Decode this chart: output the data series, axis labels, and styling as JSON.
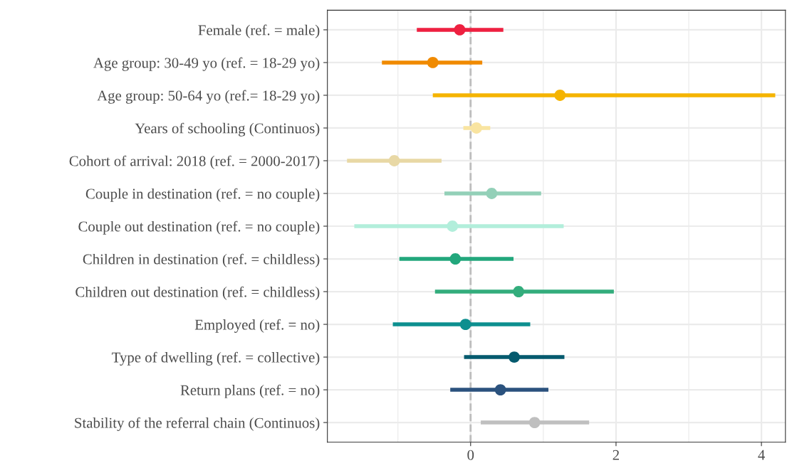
{
  "chart_data": {
    "type": "scatter",
    "orientation": "horizontal",
    "categories": [
      "Female (ref. = male)",
      "Age group: 30-49 yo (ref. = 18-29 yo)",
      "Age group: 50-64 yo (ref.= 18-29 yo)",
      "Years of schooling (Continuos)",
      "Cohort of arrival: 2018 (ref. = 2000-2017)",
      "Couple in destination (ref. = no couple)",
      "Couple out destination (ref. = no couple)",
      "Children in destination (ref. = childless)",
      "Children out destination (ref. = childless)",
      "Employed (ref. = no)",
      "Type of dwelling (ref. = collective)",
      "Return plans (ref. = no)",
      "Stability of the referral chain (Continuos)"
    ],
    "values": [
      -0.15,
      -0.52,
      1.23,
      0.08,
      -1.05,
      0.29,
      -0.25,
      -0.21,
      0.66,
      -0.07,
      0.6,
      0.41,
      0.88
    ],
    "errors": [
      [
        -0.74,
        0.45
      ],
      [
        -1.22,
        0.16
      ],
      [
        -0.52,
        4.19
      ],
      [
        -0.1,
        0.27
      ],
      [
        -1.7,
        -0.4
      ],
      [
        -0.36,
        0.97
      ],
      [
        -1.6,
        1.28
      ],
      [
        -0.98,
        0.59
      ],
      [
        -0.49,
        1.97
      ],
      [
        -1.07,
        0.82
      ],
      [
        -0.09,
        1.29
      ],
      [
        -0.28,
        1.07
      ],
      [
        0.14,
        1.63
      ]
    ],
    "colors": [
      "#ee2040",
      "#f08a00",
      "#f5b400",
      "#f9e4a0",
      "#e8d8a5",
      "#93d0b8",
      "#b2eedb",
      "#22a77c",
      "#33ad7c",
      "#0d8f8f",
      "#055a6e",
      "#2b527e",
      "#bfbfbf"
    ],
    "xlim": [
      -1.97,
      4.33
    ],
    "xticks": [
      {
        "value": -1,
        "label": null
      },
      0,
      {
        "value": 1,
        "label": null
      },
      2,
      {
        "value": 3,
        "label": null
      },
      4
    ],
    "ref_lines": [
      {
        "axis": "x",
        "value": 0,
        "color": "#bdbdbd",
        "line_style": "dashed"
      }
    ],
    "grid": true,
    "marker": "circle"
  }
}
